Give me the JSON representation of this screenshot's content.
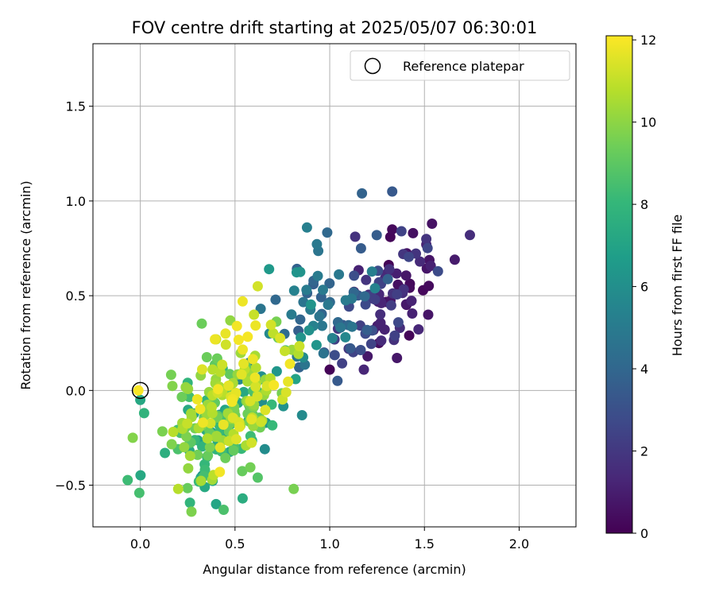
{
  "chart_data": {
    "type": "scatter",
    "title": "FOV centre drift starting at 2025/05/07 06:30:01",
    "xlabel": "Angular distance from reference (arcmin)",
    "ylabel": "Rotation from reference (arcmin)",
    "xlim": [
      -0.25,
      2.3
    ],
    "ylim": [
      -0.72,
      1.83
    ],
    "xticks": [
      "0.0",
      "0.5",
      "1.0",
      "1.5",
      "2.0"
    ],
    "yticks": [
      "−0.5",
      "0.0",
      "0.5",
      "1.0",
      "1.5"
    ],
    "grid": true,
    "legend": {
      "placement": "top-right",
      "entries": [
        "Reference platepar"
      ]
    },
    "reference_point": {
      "x": 0.0,
      "y": 0.0,
      "marker": "open-circle",
      "color": "#000000"
    },
    "colorbar": {
      "label": "Hours from first FF file",
      "range": [
        0,
        12.1
      ],
      "ticks": [
        "0",
        "2",
        "4",
        "6",
        "8",
        "10",
        "12"
      ],
      "colormap": "viridis",
      "colormap_stops": [
        "#440154",
        "#482878",
        "#3e4989",
        "#31688e",
        "#26828e",
        "#1f9e89",
        "#35b779",
        "#6ece58",
        "#b5de2b",
        "#fde725"
      ]
    },
    "series": [
      {
        "groups": [
          {
            "hours": 0.5,
            "n": 20,
            "cx": 1.38,
            "cy": 0.52,
            "sx": 0.11,
            "sy": 0.13,
            "rho": 0.2
          },
          {
            "hours": 1.5,
            "n": 30,
            "cx": 1.32,
            "cy": 0.48,
            "sx": 0.13,
            "sy": 0.15,
            "rho": 0.3
          },
          {
            "hours": 2.6,
            "n": 26,
            "cx": 1.18,
            "cy": 0.44,
            "sx": 0.15,
            "sy": 0.17,
            "rho": 0.4
          },
          {
            "hours": 3.8,
            "n": 26,
            "cx": 1.04,
            "cy": 0.45,
            "sx": 0.14,
            "sy": 0.2,
            "rho": 0.4
          },
          {
            "hours": 5.0,
            "n": 26,
            "cx": 0.9,
            "cy": 0.4,
            "sx": 0.15,
            "sy": 0.17,
            "rho": 0.5
          },
          {
            "hours": 6.0,
            "n": 22,
            "cx": 0.72,
            "cy": 0.1,
            "sx": 0.2,
            "sy": 0.22,
            "rho": 0.6
          },
          {
            "hours": 7.0,
            "n": 30,
            "cx": 0.42,
            "cy": -0.18,
            "sx": 0.16,
            "sy": 0.17,
            "rho": 0.5
          },
          {
            "hours": 8.2,
            "n": 34,
            "cx": 0.4,
            "cy": -0.22,
            "sx": 0.16,
            "sy": 0.16,
            "rho": 0.4
          },
          {
            "hours": 9.4,
            "n": 56,
            "cx": 0.45,
            "cy": -0.12,
            "sx": 0.16,
            "sy": 0.18,
            "rho": 0.5
          },
          {
            "hours": 10.5,
            "n": 62,
            "cx": 0.45,
            "cy": -0.08,
            "sx": 0.14,
            "sy": 0.18,
            "rho": 0.5
          },
          {
            "hours": 11.5,
            "n": 46,
            "cx": 0.55,
            "cy": 0.05,
            "sx": 0.13,
            "sy": 0.16,
            "rho": 0.5
          }
        ],
        "points": [
          {
            "x": 1.33,
            "y": 1.05,
            "hours": 3.4
          },
          {
            "x": 1.17,
            "y": 1.04,
            "hours": 3.8
          },
          {
            "x": 0.88,
            "y": 0.86,
            "hours": 5.2
          },
          {
            "x": 1.54,
            "y": 0.88,
            "hours": 0.6
          },
          {
            "x": 1.74,
            "y": 0.82,
            "hours": 1.6
          },
          {
            "x": 1.66,
            "y": 0.69,
            "hours": 0.9
          },
          {
            "x": 1.33,
            "y": 0.85,
            "hours": 0.3
          },
          {
            "x": 1.44,
            "y": 0.83,
            "hours": 0.5
          },
          {
            "x": 1.32,
            "y": 0.81,
            "hours": 0.2
          },
          {
            "x": 1.51,
            "y": 0.77,
            "hours": 1.2
          },
          {
            "x": 1.0,
            "y": 0.11,
            "hours": 0.1
          },
          {
            "x": 1.18,
            "y": 0.11,
            "hours": 1.3
          },
          {
            "x": 1.2,
            "y": 0.18,
            "hours": 0.8
          },
          {
            "x": 1.26,
            "y": 0.25,
            "hours": 0.4
          },
          {
            "x": 1.1,
            "y": 0.22,
            "hours": 1.9
          },
          {
            "x": 0.97,
            "y": 0.2,
            "hours": 3.1
          },
          {
            "x": 1.37,
            "y": 0.33,
            "hours": 1.6
          },
          {
            "x": 1.52,
            "y": 0.4,
            "hours": 0.7
          },
          {
            "x": 0.62,
            "y": 0.55,
            "hours": 11.3
          },
          {
            "x": 0.68,
            "y": 0.64,
            "hours": 6.5
          },
          {
            "x": 0.54,
            "y": 0.47,
            "hours": 11.8
          },
          {
            "x": 0.6,
            "y": 0.4,
            "hours": 11.1
          },
          {
            "x": 0.51,
            "y": 0.34,
            "hours": 11.9
          },
          {
            "x": 0.45,
            "y": 0.3,
            "hours": 11.7
          },
          {
            "x": 0.4,
            "y": 0.27,
            "hours": 11.2
          },
          {
            "x": 0.0,
            "y": -0.05,
            "hours": 7.2
          },
          {
            "x": 0.02,
            "y": -0.12,
            "hours": 7.8
          },
          {
            "x": -0.04,
            "y": -0.25,
            "hours": 9.8
          },
          {
            "x": 0.44,
            "y": -0.63,
            "hours": 8.6
          },
          {
            "x": 0.27,
            "y": -0.64,
            "hours": 9.7
          },
          {
            "x": 0.4,
            "y": -0.6,
            "hours": 7.1
          },
          {
            "x": 0.81,
            "y": -0.52,
            "hours": 9.6
          },
          {
            "x": 0.54,
            "y": -0.57,
            "hours": 7.5
          },
          {
            "x": 0.34,
            "y": -0.51,
            "hours": 7.3
          },
          {
            "x": 0.2,
            "y": -0.52,
            "hours": 10.8
          },
          {
            "x": 0.42,
            "y": -0.43,
            "hours": 11.9
          },
          {
            "x": 0.62,
            "y": -0.46,
            "hours": 8.8
          },
          {
            "x": 0.13,
            "y": -0.33,
            "hours": 7.6
          },
          {
            "x": -0.01,
            "y": 0.0,
            "hours": 12.0
          },
          {
            "x": 0.25,
            "y": 0.04,
            "hours": 7.9
          },
          {
            "x": 0.77,
            "y": -0.01,
            "hours": 11.4
          },
          {
            "x": 0.79,
            "y": 0.14,
            "hours": 11.9
          },
          {
            "x": 0.82,
            "y": 0.06,
            "hours": 7.0
          }
        ]
      }
    ]
  }
}
